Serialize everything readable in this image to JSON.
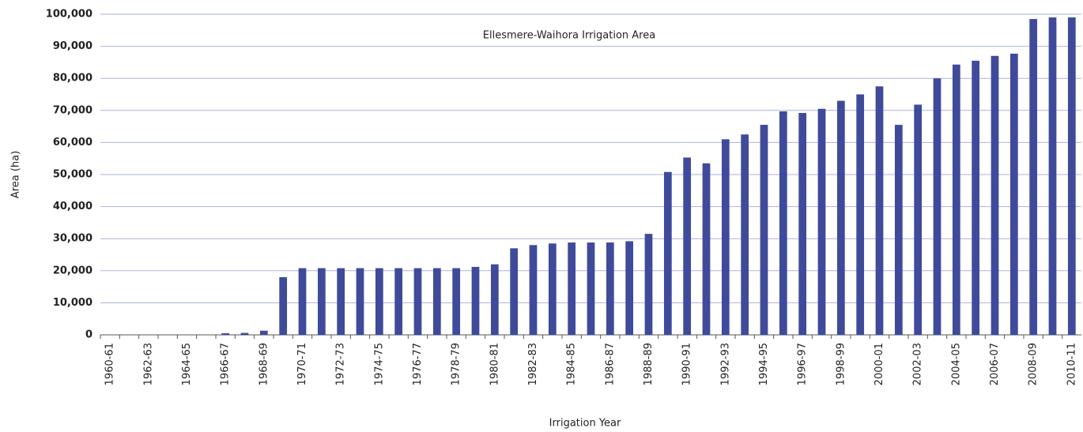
{
  "chart_data": {
    "type": "bar",
    "title": "Ellesmere-Waihora Irrigation Area",
    "x_label": "Irrigation Year",
    "y_label": "Area (ha)",
    "categories": [
      "1960-61",
      null,
      "1962-63",
      null,
      "1964-65",
      null,
      "1966-67",
      null,
      "1968-69",
      null,
      "1970-71",
      null,
      "1972-73",
      null,
      "1974-75",
      null,
      "1976-77",
      null,
      "1978-79",
      null,
      "1980-81",
      null,
      "1982-83",
      null,
      "1984-85",
      null,
      "1986-87",
      null,
      "1988-89",
      null,
      "1990-91",
      null,
      "1992-93",
      null,
      "1994-95",
      null,
      "1996-97",
      null,
      "1998-99",
      null,
      "2000-01",
      null,
      "2002-03",
      null,
      "2004-05",
      null,
      "2006-07",
      null,
      "2008-09",
      null,
      "2010-11"
    ],
    "values": [
      0,
      0,
      0,
      0,
      0,
      0,
      500,
      600,
      1300,
      18000,
      20800,
      20800,
      20800,
      20800,
      20800,
      20800,
      20800,
      20800,
      20800,
      21200,
      22000,
      27000,
      28000,
      28500,
      28800,
      28800,
      28800,
      29200,
      31500,
      50800,
      55300,
      53500,
      61000,
      62500,
      65500,
      69700,
      69200,
      70500,
      73000,
      75000,
      77500,
      65500,
      71800,
      80000,
      84300,
      85500,
      87000,
      87700,
      98500,
      99000,
      99000
    ],
    "color": "#3f4a9a",
    "ylim": [
      0,
      100000
    ],
    "yticks": [
      0,
      {
        "value": 10000,
        "label": "10,000"
      },
      {
        "value": 20000,
        "label": "20,000"
      },
      {
        "value": 30000,
        "label": "30,000"
      },
      {
        "value": 40000,
        "label": "40,000"
      },
      {
        "value": 50000,
        "label": "50,000"
      },
      {
        "value": 60000,
        "label": "60,000"
      },
      {
        "value": 70000,
        "label": "70,000"
      },
      {
        "value": 80000,
        "label": "80,000"
      },
      {
        "value": 90000,
        "label": "90,000"
      },
      {
        "value": 100000,
        "label": "100,000"
      }
    ],
    "grid": true
  }
}
